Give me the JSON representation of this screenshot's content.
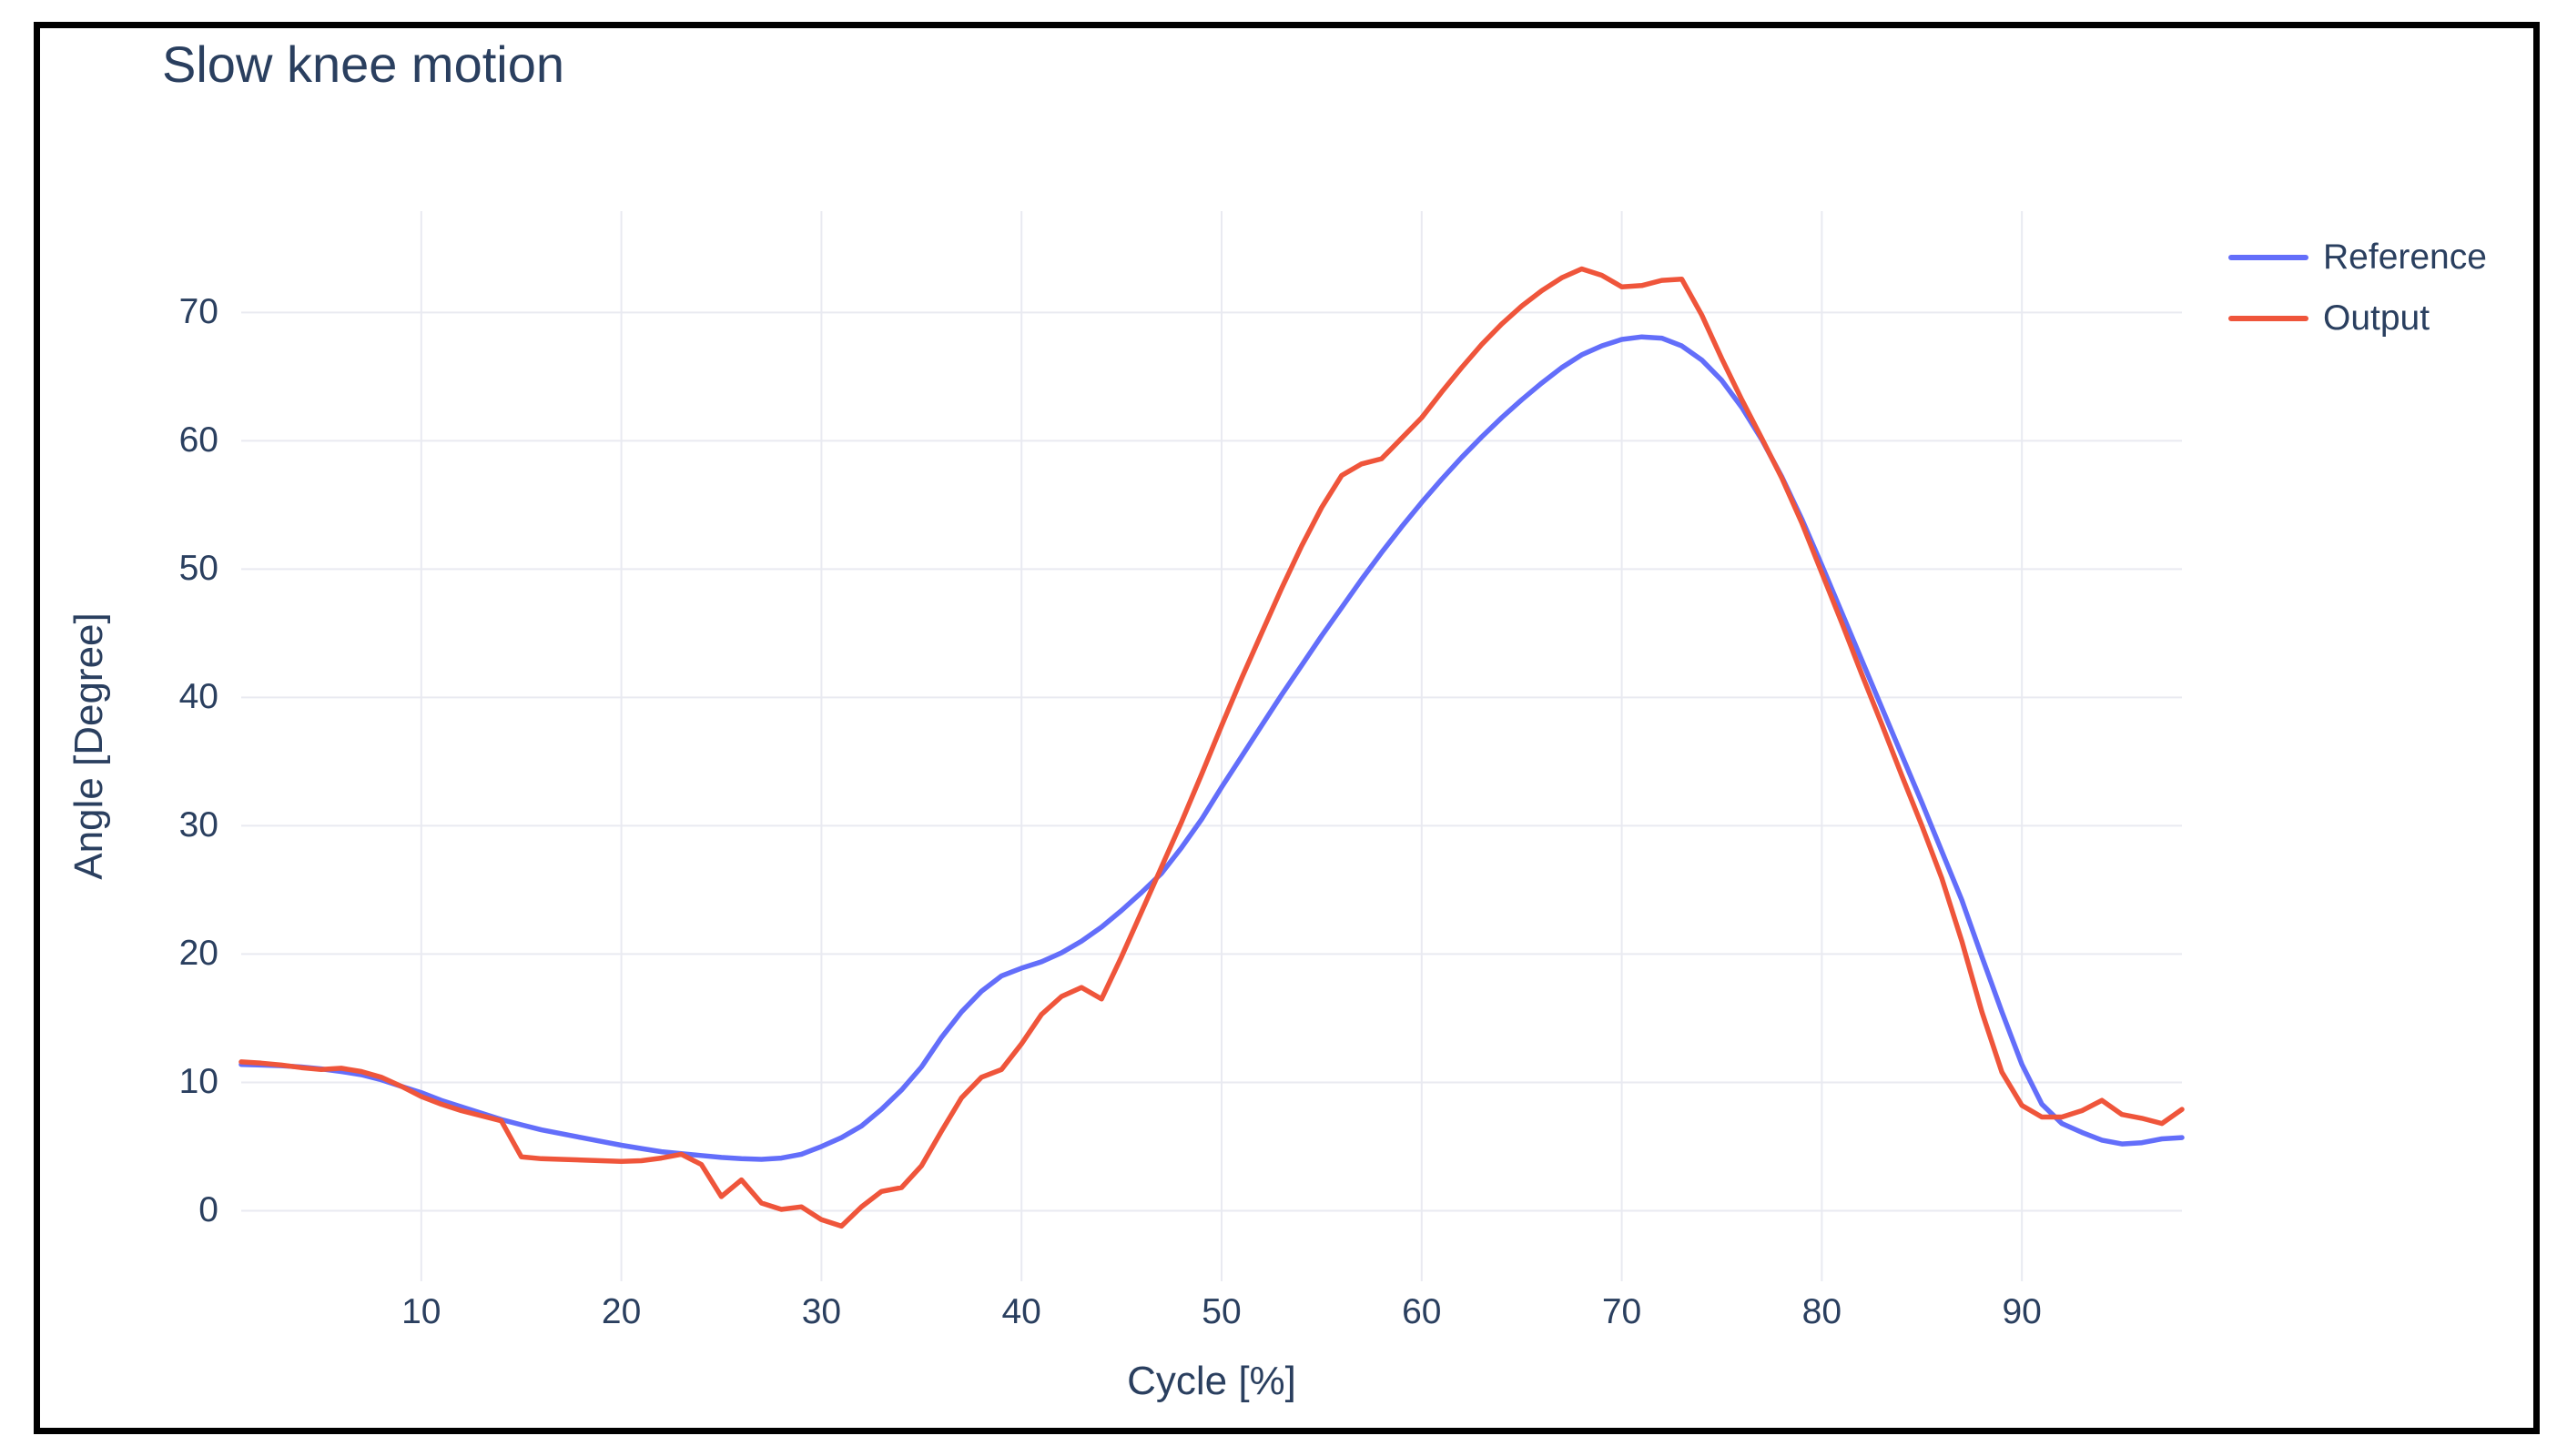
{
  "title": "Slow knee motion",
  "colors": {
    "reference": "#636EFA",
    "output": "#EF553B",
    "text": "#2a3f5f",
    "grid": "#E9EAF1",
    "background": "#FFFFFF",
    "frame_border": "#000000"
  },
  "legend": {
    "items": [
      {
        "label": "Reference",
        "color": "#636EFA"
      },
      {
        "label": "Output",
        "color": "#EF553B"
      }
    ]
  },
  "chart_data": {
    "type": "line",
    "title": "Slow knee motion",
    "xlabel": "Cycle [%]",
    "ylabel": "Angle [Degree]",
    "x_start": 1,
    "x_step": 1,
    "x_end": 98,
    "x_tick_labels": [
      10,
      20,
      30,
      40,
      50,
      60,
      70,
      80,
      90
    ],
    "y_tick_labels": [
      0,
      10,
      20,
      30,
      40,
      50,
      60,
      70
    ],
    "x_range": [
      1,
      98
    ],
    "y_range": [
      -5.5,
      77.9
    ],
    "grid": true,
    "legend_position": "top-right-outside",
    "series": [
      {
        "name": "Reference",
        "color": "#636EFA",
        "values": [
          11.4,
          11.35,
          11.3,
          11.2,
          11.05,
          10.85,
          10.6,
          10.2,
          9.7,
          9.2,
          8.6,
          8.1,
          7.6,
          7.1,
          6.7,
          6.3,
          6.0,
          5.7,
          5.4,
          5.1,
          4.85,
          4.6,
          4.45,
          4.3,
          4.15,
          4.05,
          4.0,
          4.1,
          4.4,
          5.0,
          5.7,
          6.6,
          7.9,
          9.4,
          11.2,
          13.5,
          15.5,
          17.1,
          18.3,
          18.9,
          19.4,
          20.1,
          21.0,
          22.1,
          23.4,
          24.8,
          26.3,
          28.3,
          30.5,
          33.0,
          35.4,
          37.8,
          40.2,
          42.5,
          44.8,
          47.0,
          49.2,
          51.3,
          53.3,
          55.2,
          57.0,
          58.7,
          60.3,
          61.8,
          63.2,
          64.5,
          65.7,
          66.7,
          67.4,
          67.9,
          68.1,
          68.0,
          67.4,
          66.3,
          64.7,
          62.6,
          60.1,
          57.2,
          53.9,
          50.3,
          46.6,
          42.9,
          39.2,
          35.5,
          31.8,
          28.0,
          24.2,
          19.8,
          15.5,
          11.4,
          8.3,
          6.8,
          6.1,
          5.5,
          5.2,
          5.3,
          5.6,
          5.7
        ]
      },
      {
        "name": "Output",
        "color": "#EF553B",
        "values": [
          11.6,
          11.5,
          11.35,
          11.15,
          11.0,
          11.1,
          10.85,
          10.4,
          9.7,
          8.9,
          8.3,
          7.8,
          7.4,
          7.0,
          4.2,
          4.05,
          4.0,
          3.95,
          3.9,
          3.85,
          3.9,
          4.1,
          4.4,
          3.6,
          1.1,
          2.4,
          0.6,
          0.1,
          0.3,
          -0.7,
          -1.2,
          0.3,
          1.5,
          1.8,
          3.5,
          6.2,
          8.8,
          10.4,
          11.0,
          13.0,
          15.3,
          16.7,
          17.4,
          16.5,
          19.8,
          23.3,
          26.8,
          30.3,
          34.0,
          37.8,
          41.5,
          45.0,
          48.5,
          51.8,
          54.8,
          57.3,
          58.2,
          58.6,
          60.2,
          61.8,
          63.8,
          65.7,
          67.5,
          69.1,
          70.5,
          71.7,
          72.7,
          73.4,
          72.9,
          72.0,
          72.1,
          72.5,
          72.6,
          69.8,
          66.4,
          63.2,
          60.2,
          57.1,
          53.6,
          49.7,
          45.8,
          41.8,
          37.9,
          33.9,
          30.0,
          25.9,
          21.0,
          15.5,
          10.8,
          8.2,
          7.3,
          7.3,
          7.8,
          8.6,
          7.5,
          7.2,
          6.8,
          7.9
        ]
      }
    ]
  }
}
